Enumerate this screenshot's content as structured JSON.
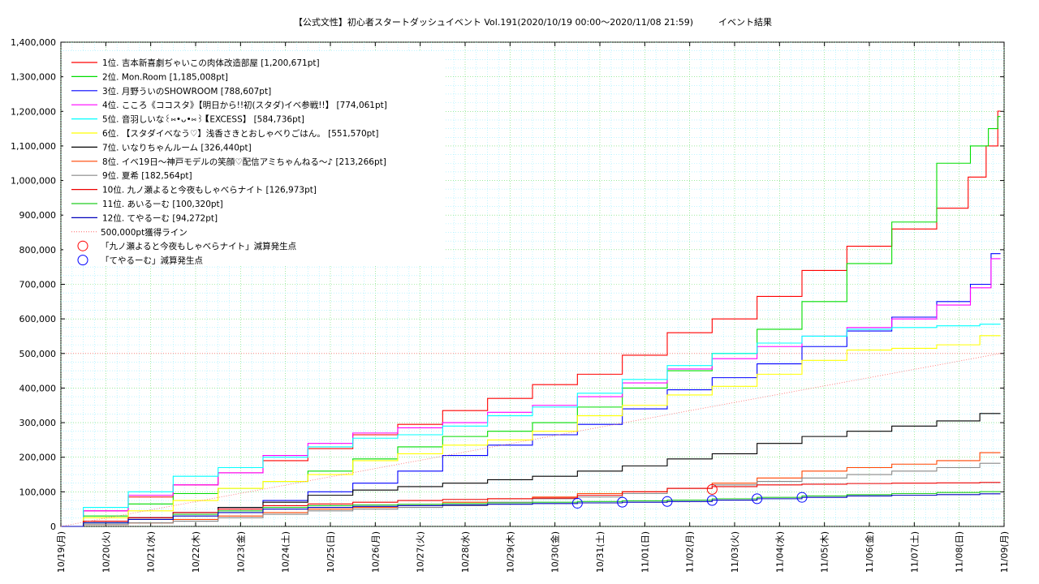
{
  "chart_data": {
    "type": "line",
    "title": "【公式文性】初心者スタートダッシュイベント Vol.191(2020/10/19 00:00〜2020/11/08 21:59)",
    "subtitle": "イベント結果",
    "xlabel": "",
    "ylabel": "",
    "x_ticks": [
      "10/19(月)",
      "10/20(火)",
      "10/21(水)",
      "10/22(木)",
      "10/23(金)",
      "10/24(土)",
      "10/25(日)",
      "10/26(月)",
      "10/27(火)",
      "10/28(水)",
      "10/29(木)",
      "10/30(金)",
      "10/31(土)",
      "11/01(日)",
      "11/02(月)",
      "11/03(火)",
      "11/04(水)",
      "11/05(木)",
      "11/06(金)",
      "11/07(土)",
      "11/08(日)",
      "11/09(月)"
    ],
    "x_range_days": [
      0,
      21
    ],
    "y_ticks": [
      "0",
      "100,000",
      "200,000",
      "300,000",
      "400,000",
      "500,000",
      "600,000",
      "700,000",
      "800,000",
      "900,000",
      "1,000,000",
      "1,100,000",
      "1,200,000",
      "1,300,000",
      "1,400,000"
    ],
    "ylim": [
      0,
      1400000
    ],
    "grid": true,
    "legend_position": "top-left",
    "series": [
      {
        "name": "1位. 吉本新喜劇ぢゃいこの肉体改造部屋 [1,200,671pt]",
        "color": "#ff0000",
        "x": [
          0,
          1,
          2,
          3,
          4,
          5,
          6,
          7,
          8,
          9,
          10,
          11,
          12,
          13,
          14,
          15,
          16,
          17,
          18,
          19,
          20,
          20.4,
          20.8,
          20.92
        ],
        "y": [
          0,
          45000,
          85000,
          120000,
          155000,
          190000,
          225000,
          265000,
          295000,
          335000,
          370000,
          410000,
          440000,
          495000,
          560000,
          600000,
          665000,
          740000,
          810000,
          860000,
          920000,
          1010000,
          1100000,
          1200671
        ]
      },
      {
        "name": "2位. Mon.Room [1,185,008pt]",
        "color": "#00dd00",
        "x": [
          0,
          1,
          2,
          3,
          4,
          5,
          6,
          7,
          8,
          9,
          10,
          11,
          12,
          13,
          14,
          15,
          16,
          17,
          18,
          19,
          20,
          20.5,
          20.8,
          20.92
        ],
        "y": [
          0,
          30000,
          65000,
          95000,
          110000,
          130000,
          160000,
          195000,
          230000,
          260000,
          275000,
          300000,
          345000,
          400000,
          450000,
          500000,
          570000,
          650000,
          760000,
          880000,
          1050000,
          1100000,
          1150000,
          1185008
        ]
      },
      {
        "name": "3位. 月野ういのSHOWROOM [788,607pt]",
        "color": "#0000ff",
        "x": [
          0,
          1,
          2,
          3,
          4,
          5,
          6,
          7,
          8,
          9,
          10,
          11,
          12,
          13,
          14,
          15,
          16,
          17,
          18,
          19,
          20,
          20.5,
          20.92
        ],
        "y": [
          0,
          15000,
          25000,
          40000,
          55000,
          75000,
          100000,
          125000,
          160000,
          205000,
          235000,
          265000,
          295000,
          340000,
          395000,
          430000,
          470000,
          520000,
          565000,
          605000,
          650000,
          700000,
          788607
        ]
      },
      {
        "name": "4位. こころ《ココスタ》【明日から!!初(スタダ)イベ参戦!!】 [774,061pt]",
        "color": "#ff00ff",
        "x": [
          0,
          1,
          2,
          3,
          4,
          5,
          6,
          7,
          8,
          9,
          10,
          11,
          12,
          13,
          14,
          15,
          16,
          17,
          18,
          19,
          20,
          20.5,
          20.92
        ],
        "y": [
          0,
          45000,
          90000,
          120000,
          155000,
          205000,
          240000,
          270000,
          285000,
          300000,
          330000,
          350000,
          375000,
          415000,
          455000,
          485000,
          520000,
          550000,
          575000,
          600000,
          640000,
          690000,
          774061
        ]
      },
      {
        "name": "5位. 音羽しいな꒰⑅•ᴗ•⑅꒱【EXCESS】 [584,736pt]",
        "color": "#00ffff",
        "x": [
          0,
          1,
          2,
          3,
          4,
          5,
          6,
          7,
          8,
          9,
          10,
          11,
          12,
          13,
          14,
          15,
          16,
          17,
          18,
          19,
          20,
          20.92
        ],
        "y": [
          0,
          55000,
          100000,
          145000,
          170000,
          200000,
          230000,
          255000,
          265000,
          290000,
          320000,
          345000,
          385000,
          425000,
          465000,
          500000,
          530000,
          550000,
          570000,
          575000,
          580000,
          584736
        ]
      },
      {
        "name": "6位. 【スタダイベなう♡】浅香さきとおしゃべりごはん。 [551,570pt]",
        "color": "#ffff00",
        "x": [
          0,
          1,
          2,
          3,
          4,
          5,
          6,
          7,
          8,
          9,
          10,
          11,
          12,
          13,
          14,
          15,
          16,
          17,
          18,
          19,
          20,
          20.92
        ],
        "y": [
          0,
          25000,
          45000,
          75000,
          110000,
          130000,
          150000,
          190000,
          210000,
          235000,
          250000,
          275000,
          320000,
          350000,
          380000,
          405000,
          440000,
          480000,
          510000,
          515000,
          525000,
          551570
        ]
      },
      {
        "name": "7位. いなりちゃんルーム [326,440pt]",
        "color": "#000000",
        "x": [
          0,
          1,
          2,
          3,
          4,
          5,
          6,
          7,
          8,
          9,
          10,
          11,
          12,
          13,
          14,
          15,
          16,
          17,
          18,
          19,
          20,
          20.92
        ],
        "y": [
          0,
          15000,
          25000,
          40000,
          55000,
          70000,
          90000,
          105000,
          115000,
          125000,
          135000,
          145000,
          160000,
          175000,
          195000,
          210000,
          240000,
          260000,
          275000,
          290000,
          305000,
          326440
        ]
      },
      {
        "name": "8位. イベ19日〜神戸モデルの笑顔♡配信アミちゃんねる〜♪ [213,266pt]",
        "color": "#ff4400",
        "x": [
          0,
          1,
          2,
          3,
          4,
          5,
          6,
          7,
          8,
          9,
          10,
          11,
          12,
          13,
          14,
          15,
          16,
          17,
          18,
          19,
          20,
          20.92
        ],
        "y": [
          0,
          5000,
          10000,
          20000,
          30000,
          40000,
          50000,
          55000,
          60000,
          70000,
          80000,
          85000,
          95000,
          100000,
          110000,
          125000,
          140000,
          160000,
          170000,
          180000,
          190000,
          213266
        ]
      },
      {
        "name": "9位. 夏希 [182,564pt]",
        "color": "#888888",
        "x": [
          0,
          1,
          2,
          3,
          4,
          5,
          6,
          7,
          8,
          9,
          10,
          11,
          12,
          13,
          14,
          15,
          16,
          17,
          18,
          19,
          20,
          20.92
        ],
        "y": [
          0,
          5000,
          10000,
          15000,
          25000,
          35000,
          45000,
          50000,
          55000,
          60000,
          70000,
          80000,
          85000,
          95000,
          110000,
          120000,
          130000,
          140000,
          150000,
          160000,
          170000,
          182564
        ]
      },
      {
        "name": "10位. 九ノ瀬よると今夜もしゃべらナイト [126,973pt]",
        "color": "#ee0000",
        "x": [
          0,
          1,
          2,
          3,
          4,
          5,
          6,
          7,
          8,
          9,
          10,
          11,
          12,
          13,
          14,
          15,
          16,
          17,
          18,
          19,
          20,
          20.92
        ],
        "y": [
          0,
          15000,
          25000,
          40000,
          50000,
          60000,
          65000,
          70000,
          75000,
          78000,
          80000,
          82000,
          90000,
          100000,
          110000,
          115000,
          120000,
          122000,
          124000,
          125000,
          126000,
          126973
        ]
      },
      {
        "name": "11位. あいるーむ [100,320pt]",
        "color": "#22cc22",
        "x": [
          0,
          1,
          2,
          3,
          4,
          5,
          6,
          7,
          8,
          9,
          10,
          11,
          12,
          13,
          14,
          15,
          16,
          17,
          18,
          19,
          20,
          20.92
        ],
        "y": [
          0,
          10000,
          20000,
          35000,
          45000,
          55000,
          60000,
          62000,
          64000,
          66000,
          68000,
          70000,
          72000,
          74000,
          76000,
          80000,
          84000,
          88000,
          92000,
          95000,
          98000,
          100320
        ]
      },
      {
        "name": "12位. てやるーむ [94,272pt]",
        "color": "#0000bb",
        "x": [
          0,
          1,
          2,
          3,
          4,
          5,
          6,
          7,
          8,
          9,
          10,
          11,
          12,
          13,
          14,
          15,
          16,
          17,
          18,
          19,
          20,
          20.92
        ],
        "y": [
          0,
          10000,
          20000,
          30000,
          40000,
          50000,
          55000,
          58000,
          60000,
          62000,
          64000,
          66000,
          68000,
          70000,
          72000,
          76000,
          80000,
          84000,
          88000,
          90000,
          92000,
          94272
        ]
      }
    ],
    "target_line": {
      "name": "500,000pt獲得ライン",
      "color": "#ff6666",
      "x": [
        0,
        20.92
      ],
      "y": [
        0,
        500000
      ]
    },
    "reference_line": {
      "value": 500000,
      "color": "#ff6666"
    },
    "markers": [
      {
        "name": "「九ノ瀬よると今夜もしゃべらナイト」減算発生点",
        "color": "#ff0000",
        "x": [
          14.5
        ],
        "y": [
          107000
        ]
      },
      {
        "name": "「てやるーむ」減算発生点",
        "color": "#0000ff",
        "x": [
          11.5,
          12.5,
          13.5,
          14.5,
          15.5,
          16.5
        ],
        "y": [
          67000,
          70000,
          72000,
          75000,
          80000,
          84000
        ]
      }
    ]
  }
}
